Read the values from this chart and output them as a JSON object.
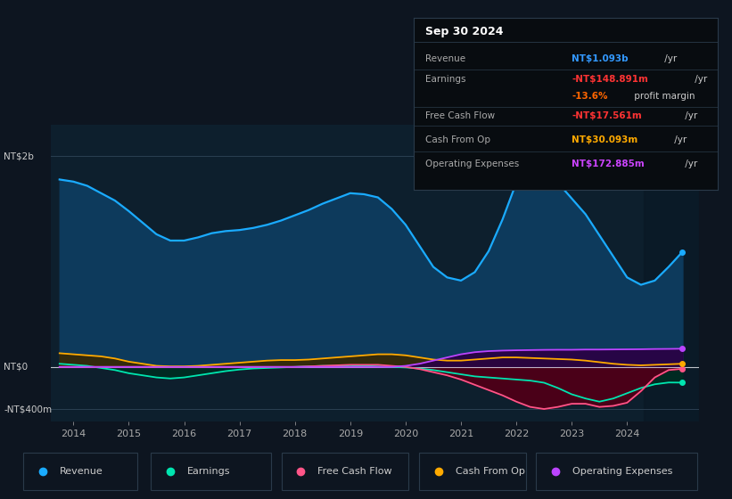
{
  "bg_color": "#0d1520",
  "plot_bg_color": "#0d1f2d",
  "grid_color": "#2a3f52",
  "yticks_labels": [
    "NT$2b",
    "NT$0",
    "-NT$400m"
  ],
  "yticks_values": [
    2000,
    0,
    -400
  ],
  "xticks": [
    2014,
    2015,
    2016,
    2017,
    2018,
    2019,
    2020,
    2021,
    2022,
    2023,
    2024
  ],
  "ylim": [
    -520,
    2300
  ],
  "xlim": [
    2013.6,
    2025.3
  ],
  "shade_start": 2024.3,
  "title_box": {
    "date": "Sep 30 2024",
    "rows": [
      {
        "label": "Revenue",
        "value": "NT$1.093b",
        "value_color": "#3399ff",
        "suffix": " /yr"
      },
      {
        "label": "Earnings",
        "value": "-NT$148.891m",
        "value_color": "#ff3333",
        "suffix": " /yr"
      },
      {
        "label": "",
        "value": "-13.6%",
        "value_color": "#ff6600",
        "suffix": " profit margin"
      },
      {
        "label": "Free Cash Flow",
        "value": "-NT$17.561m",
        "value_color": "#ff3333",
        "suffix": " /yr"
      },
      {
        "label": "Cash From Op",
        "value": "NT$30.093m",
        "value_color": "#ffaa00",
        "suffix": " /yr"
      },
      {
        "label": "Operating Expenses",
        "value": "NT$172.885m",
        "value_color": "#cc44ff",
        "suffix": " /yr"
      }
    ]
  },
  "series": {
    "revenue": {
      "color": "#1aabff",
      "fill_color": "#0d3a5c",
      "label": "Revenue",
      "x": [
        2013.75,
        2014.0,
        2014.25,
        2014.5,
        2014.75,
        2015.0,
        2015.25,
        2015.5,
        2015.75,
        2016.0,
        2016.25,
        2016.5,
        2016.75,
        2017.0,
        2017.25,
        2017.5,
        2017.75,
        2018.0,
        2018.25,
        2018.5,
        2018.75,
        2019.0,
        2019.25,
        2019.5,
        2019.75,
        2020.0,
        2020.25,
        2020.5,
        2020.75,
        2021.0,
        2021.25,
        2021.5,
        2021.75,
        2022.0,
        2022.25,
        2022.5,
        2022.75,
        2023.0,
        2023.25,
        2023.5,
        2023.75,
        2024.0,
        2024.25,
        2024.5,
        2024.75,
        2025.0
      ],
      "y": [
        1780,
        1760,
        1720,
        1650,
        1580,
        1480,
        1370,
        1260,
        1200,
        1200,
        1230,
        1270,
        1290,
        1300,
        1320,
        1350,
        1390,
        1440,
        1490,
        1550,
        1600,
        1650,
        1640,
        1610,
        1500,
        1350,
        1150,
        950,
        850,
        820,
        900,
        1100,
        1400,
        1750,
        1900,
        1850,
        1750,
        1600,
        1450,
        1250,
        1050,
        850,
        780,
        820,
        950,
        1093
      ]
    },
    "earnings": {
      "color": "#00e5b0",
      "fill_color": "#00332a",
      "label": "Earnings",
      "x": [
        2013.75,
        2014.0,
        2014.25,
        2014.5,
        2014.75,
        2015.0,
        2015.25,
        2015.5,
        2015.75,
        2016.0,
        2016.25,
        2016.5,
        2016.75,
        2017.0,
        2017.25,
        2017.5,
        2017.75,
        2018.0,
        2018.25,
        2018.5,
        2018.75,
        2019.0,
        2019.25,
        2019.5,
        2019.75,
        2020.0,
        2020.25,
        2020.5,
        2020.75,
        2021.0,
        2021.25,
        2021.5,
        2021.75,
        2022.0,
        2022.25,
        2022.5,
        2022.75,
        2023.0,
        2023.25,
        2023.5,
        2023.75,
        2024.0,
        2024.25,
        2024.5,
        2024.75,
        2025.0
      ],
      "y": [
        30,
        20,
        10,
        -10,
        -30,
        -60,
        -80,
        -100,
        -110,
        -100,
        -80,
        -60,
        -40,
        -25,
        -15,
        -10,
        -5,
        0,
        5,
        10,
        10,
        15,
        10,
        5,
        0,
        -5,
        -15,
        -30,
        -50,
        -70,
        -90,
        -100,
        -110,
        -120,
        -130,
        -150,
        -200,
        -260,
        -300,
        -330,
        -300,
        -250,
        -200,
        -165,
        -148,
        -148.891
      ]
    },
    "free_cash_flow": {
      "color": "#ff5588",
      "fill_color": "#4a0018",
      "label": "Free Cash Flow",
      "x": [
        2013.75,
        2014.0,
        2014.25,
        2014.5,
        2014.75,
        2015.0,
        2015.25,
        2015.5,
        2015.75,
        2016.0,
        2016.25,
        2016.5,
        2016.75,
        2017.0,
        2017.25,
        2017.5,
        2017.75,
        2018.0,
        2018.25,
        2018.5,
        2018.75,
        2019.0,
        2019.25,
        2019.5,
        2019.75,
        2020.0,
        2020.25,
        2020.5,
        2020.75,
        2021.0,
        2021.25,
        2021.5,
        2021.75,
        2022.0,
        2022.25,
        2022.5,
        2022.75,
        2023.0,
        2023.25,
        2023.5,
        2023.75,
        2024.0,
        2024.25,
        2024.5,
        2024.75,
        2025.0
      ],
      "y": [
        0,
        0,
        0,
        0,
        0,
        0,
        0,
        0,
        0,
        0,
        0,
        0,
        0,
        0,
        0,
        0,
        0,
        0,
        5,
        10,
        15,
        20,
        20,
        20,
        10,
        0,
        -20,
        -50,
        -80,
        -120,
        -170,
        -220,
        -270,
        -330,
        -380,
        -400,
        -380,
        -350,
        -350,
        -380,
        -370,
        -340,
        -230,
        -100,
        -30,
        -17.561
      ]
    },
    "cash_from_op": {
      "color": "#ffaa00",
      "fill_color": "#3a2800",
      "label": "Cash From Op",
      "x": [
        2013.75,
        2014.0,
        2014.25,
        2014.5,
        2014.75,
        2015.0,
        2015.25,
        2015.5,
        2015.75,
        2016.0,
        2016.25,
        2016.5,
        2016.75,
        2017.0,
        2017.25,
        2017.5,
        2017.75,
        2018.0,
        2018.25,
        2018.5,
        2018.75,
        2019.0,
        2019.25,
        2019.5,
        2019.75,
        2020.0,
        2020.25,
        2020.5,
        2020.75,
        2021.0,
        2021.25,
        2021.5,
        2021.75,
        2022.0,
        2022.25,
        2022.5,
        2022.75,
        2023.0,
        2023.25,
        2023.5,
        2023.75,
        2024.0,
        2024.25,
        2024.5,
        2024.75,
        2025.0
      ],
      "y": [
        130,
        120,
        110,
        100,
        80,
        50,
        30,
        10,
        5,
        5,
        10,
        20,
        30,
        40,
        50,
        60,
        65,
        65,
        70,
        80,
        90,
        100,
        110,
        120,
        120,
        110,
        90,
        70,
        60,
        60,
        70,
        80,
        90,
        90,
        85,
        80,
        75,
        70,
        60,
        45,
        30,
        20,
        15,
        20,
        25,
        30.093
      ]
    },
    "operating_expenses": {
      "color": "#bb44ff",
      "fill_color": "#2a0044",
      "label": "Operating Expenses",
      "x": [
        2013.75,
        2014.0,
        2014.25,
        2014.5,
        2014.75,
        2015.0,
        2015.25,
        2015.5,
        2015.75,
        2016.0,
        2016.25,
        2016.5,
        2016.75,
        2017.0,
        2017.25,
        2017.5,
        2017.75,
        2018.0,
        2018.25,
        2018.5,
        2018.75,
        2019.0,
        2019.25,
        2019.5,
        2019.75,
        2020.0,
        2020.25,
        2020.5,
        2020.75,
        2021.0,
        2021.25,
        2021.5,
        2021.75,
        2022.0,
        2022.25,
        2022.5,
        2022.75,
        2023.0,
        2023.25,
        2023.5,
        2023.75,
        2024.0,
        2024.25,
        2024.5,
        2024.75,
        2025.0
      ],
      "y": [
        0,
        0,
        0,
        0,
        0,
        0,
        0,
        0,
        0,
        0,
        0,
        0,
        0,
        0,
        0,
        0,
        0,
        0,
        0,
        0,
        0,
        0,
        0,
        0,
        0,
        10,
        30,
        60,
        90,
        120,
        140,
        150,
        155,
        158,
        160,
        162,
        163,
        163,
        165,
        165,
        166,
        167,
        168,
        170,
        171,
        172.885
      ]
    }
  },
  "legend": [
    {
      "label": "Revenue",
      "color": "#1aabff"
    },
    {
      "label": "Earnings",
      "color": "#00e5b0"
    },
    {
      "label": "Free Cash Flow",
      "color": "#ff5588"
    },
    {
      "label": "Cash From Op",
      "color": "#ffaa00"
    },
    {
      "label": "Operating Expenses",
      "color": "#bb44ff"
    }
  ]
}
